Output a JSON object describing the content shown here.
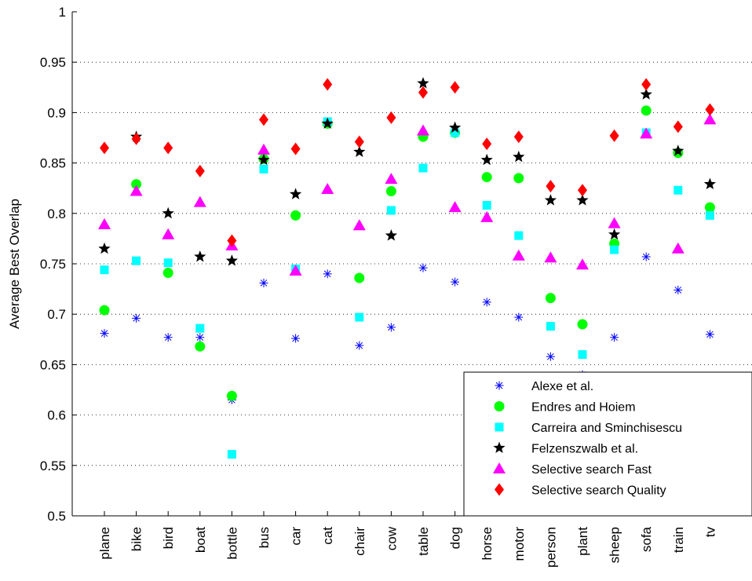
{
  "chart_data": {
    "type": "scatter",
    "title": "",
    "xlabel": "",
    "ylabel": "Average Best Overlap",
    "ylim": [
      0.5,
      1
    ],
    "yticks": [
      "0.5",
      "0.55",
      "0.6",
      "0.65",
      "0.7",
      "0.75",
      "0.8",
      "0.85",
      "0.9",
      "0.95",
      "1"
    ],
    "grid": "dotted",
    "legend_position": "bottom-right",
    "categories": [
      "plane",
      "bike",
      "bird",
      "boat",
      "bottle",
      "bus",
      "car",
      "cat",
      "chair",
      "cow",
      "table",
      "dog",
      "horse",
      "motor",
      "person",
      "plant",
      "sheep",
      "sofa",
      "train",
      "tv"
    ],
    "series": [
      {
        "name": "Alexe et al.",
        "marker": "asterisk",
        "color": "#0000ff",
        "values": [
          0.681,
          0.696,
          0.677,
          0.677,
          0.615,
          0.731,
          0.676,
          0.74,
          0.669,
          0.687,
          0.746,
          0.732,
          0.712,
          0.697,
          0.658,
          0.64,
          0.677,
          0.757,
          0.724,
          0.68
        ]
      },
      {
        "name": "Endres and Hoiem",
        "marker": "circle",
        "color": "#00ff00",
        "values": [
          0.704,
          0.829,
          0.741,
          0.668,
          0.619,
          0.854,
          0.798,
          0.889,
          0.736,
          0.822,
          0.876,
          0.88,
          0.836,
          0.835,
          0.716,
          0.69,
          0.77,
          0.902,
          0.86,
          0.806
        ]
      },
      {
        "name": "Carreira and Sminchisescu",
        "marker": "square",
        "color": "#00ffff",
        "values": [
          0.744,
          0.753,
          0.751,
          0.686,
          0.561,
          0.844,
          0.745,
          0.891,
          0.697,
          0.803,
          0.845,
          0.88,
          0.808,
          0.778,
          0.688,
          0.66,
          0.764,
          0.88,
          0.823,
          0.798
        ]
      },
      {
        "name": "Felzenszwalb et al.",
        "marker": "star",
        "color": "#000000",
        "values": [
          0.765,
          0.876,
          0.8,
          0.757,
          0.753,
          0.853,
          0.819,
          0.889,
          0.861,
          0.778,
          0.929,
          0.885,
          0.853,
          0.856,
          0.813,
          0.813,
          0.779,
          0.918,
          0.862,
          0.829
        ]
      },
      {
        "name": "Selective search Fast",
        "marker": "triangle",
        "color": "#ff00ff",
        "values": [
          0.789,
          0.822,
          0.779,
          0.811,
          0.768,
          0.863,
          0.743,
          0.824,
          0.788,
          0.834,
          0.882,
          0.806,
          0.796,
          0.758,
          0.756,
          0.749,
          0.79,
          0.879,
          0.765,
          0.893
        ]
      },
      {
        "name": "Selective search Quality",
        "marker": "diamond",
        "color": "#ff0000",
        "values": [
          0.865,
          0.874,
          0.865,
          0.842,
          0.773,
          0.893,
          0.864,
          0.928,
          0.871,
          0.895,
          0.92,
          0.925,
          0.869,
          0.876,
          0.827,
          0.823,
          0.877,
          0.928,
          0.886,
          0.903
        ]
      }
    ]
  }
}
